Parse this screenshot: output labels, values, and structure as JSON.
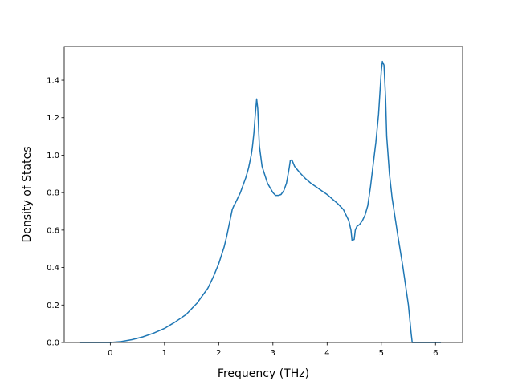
{
  "chart_data": {
    "type": "line",
    "title": "",
    "xlabel": "Frequency (THz)",
    "ylabel": "Density of States",
    "xlim": [
      -0.85,
      6.5
    ],
    "ylim": [
      0,
      1.58
    ],
    "xticks": [
      0,
      1,
      2,
      3,
      4,
      5,
      6
    ],
    "yticks": [
      0.0,
      0.2,
      0.4,
      0.6,
      0.8,
      1.0,
      1.2,
      1.4
    ],
    "xtick_labels": [
      "0",
      "1",
      "2",
      "3",
      "4",
      "5",
      "6"
    ],
    "ytick_labels": [
      "0.0",
      "0.2",
      "0.4",
      "0.6",
      "0.8",
      "1.0",
      "1.2",
      "1.4"
    ],
    "grid": false,
    "legend": "none",
    "color": "#1f77b4",
    "series": [
      {
        "x": [
          -0.57,
          -0.3,
          0.0,
          0.2,
          0.4,
          0.6,
          0.8,
          1.0,
          1.2,
          1.4,
          1.6,
          1.8,
          1.9,
          2.0,
          2.1,
          2.15,
          2.2,
          2.25,
          2.28,
          2.3,
          2.4,
          2.5,
          2.55,
          2.6,
          2.62,
          2.65,
          2.67,
          2.7,
          2.72,
          2.75,
          2.8,
          2.9,
          3.0,
          3.05,
          3.1,
          3.15,
          3.2,
          3.25,
          3.3,
          3.32,
          3.35,
          3.4,
          3.5,
          3.6,
          3.7,
          3.8,
          3.9,
          4.0,
          4.1,
          4.2,
          4.3,
          4.35,
          4.4,
          4.44,
          4.46,
          4.5,
          4.52,
          4.55,
          4.6,
          4.65,
          4.7,
          4.75,
          4.8,
          4.85,
          4.9,
          4.95,
          5.0,
          5.02,
          5.05,
          5.08,
          5.1,
          5.15,
          5.2,
          5.3,
          5.4,
          5.5,
          5.55,
          5.57,
          5.6,
          5.8,
          6.1
        ],
        "y": [
          0.0,
          0.0,
          0.0,
          0.005,
          0.015,
          0.03,
          0.05,
          0.075,
          0.11,
          0.15,
          0.21,
          0.29,
          0.35,
          0.42,
          0.51,
          0.57,
          0.64,
          0.71,
          0.73,
          0.74,
          0.8,
          0.88,
          0.93,
          1.0,
          1.04,
          1.12,
          1.2,
          1.3,
          1.25,
          1.05,
          0.94,
          0.85,
          0.8,
          0.785,
          0.785,
          0.79,
          0.81,
          0.85,
          0.93,
          0.97,
          0.975,
          0.94,
          0.905,
          0.875,
          0.85,
          0.83,
          0.81,
          0.79,
          0.765,
          0.74,
          0.71,
          0.68,
          0.65,
          0.6,
          0.545,
          0.55,
          0.6,
          0.62,
          0.63,
          0.65,
          0.68,
          0.73,
          0.83,
          0.95,
          1.07,
          1.22,
          1.45,
          1.5,
          1.48,
          1.3,
          1.1,
          0.9,
          0.77,
          0.58,
          0.4,
          0.2,
          0.05,
          0.0,
          0.0,
          0.0,
          0.0
        ]
      }
    ]
  }
}
